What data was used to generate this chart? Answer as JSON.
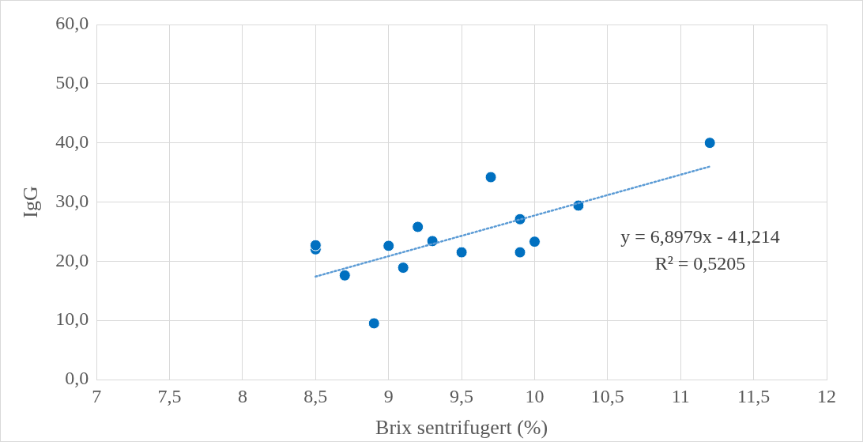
{
  "chart_data": {
    "type": "scatter",
    "xlabel": "Brix sentrifugert (%)",
    "ylabel": "IgG",
    "x": [
      8.5,
      8.5,
      8.7,
      8.9,
      9.0,
      9.1,
      9.2,
      9.3,
      9.5,
      9.7,
      9.9,
      9.9,
      10.0,
      10.3,
      11.2
    ],
    "series": [
      {
        "color": "#0070c0",
        "marker": "circle",
        "values": [
          22.0,
          22.7,
          17.6,
          9.5,
          22.6,
          18.9,
          25.8,
          23.4,
          21.5,
          34.2,
          27.1,
          21.5,
          23.3,
          29.4,
          40.0
        ]
      },
      {
        "type": "line",
        "color": "#5b9bd5",
        "line_style": "dotted",
        "marker": "none",
        "x": [
          8.5,
          11.2
        ],
        "values": [
          17.4,
          36.0
        ]
      }
    ],
    "xlim": [
      7,
      12
    ],
    "xticks": [
      7,
      {
        "value": 7.5,
        "label": "7,5"
      },
      8,
      {
        "value": 8.5,
        "label": "8,5"
      },
      9,
      {
        "value": 9.5,
        "label": "9,5"
      },
      10,
      {
        "value": 10.5,
        "label": "10,5"
      },
      11,
      {
        "value": 11.5,
        "label": "11,5"
      },
      12
    ],
    "ylim": [
      0,
      60
    ],
    "yticks": [
      {
        "value": 0,
        "label": "0,0"
      },
      {
        "value": 10,
        "label": "10,0"
      },
      {
        "value": 20,
        "label": "20,0"
      },
      {
        "value": 30,
        "label": "30,0"
      },
      {
        "value": 40,
        "label": "40,0"
      },
      {
        "value": 50,
        "label": "50,0"
      },
      {
        "value": 60,
        "label": "60,0"
      }
    ],
    "grid": true,
    "legend": false,
    "annotations": [
      "y = 6,8979x - 41,214",
      "R² = 0,5205"
    ]
  }
}
